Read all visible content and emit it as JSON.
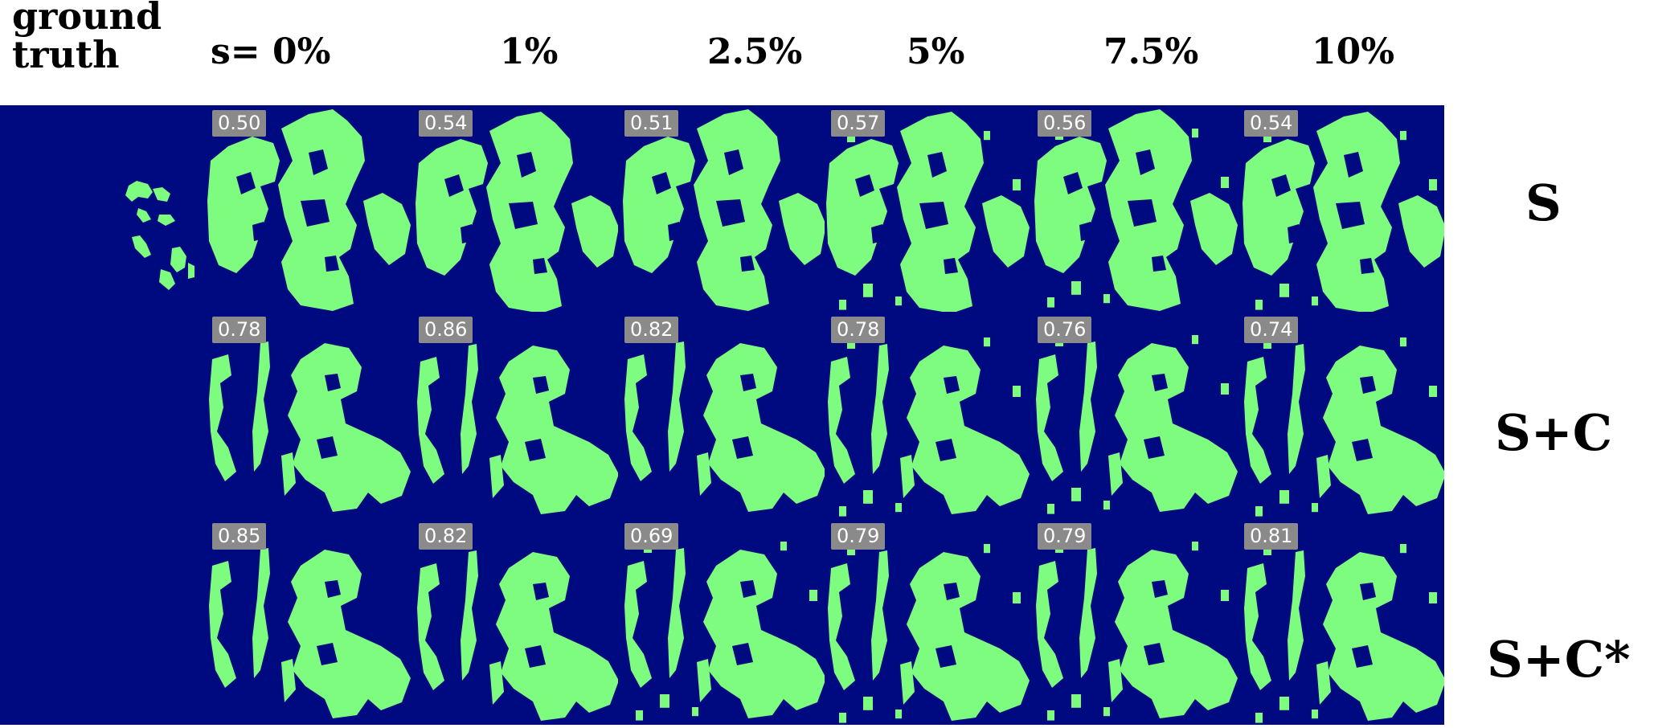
{
  "ground_truth_label": "ground\ntruth",
  "column_labels": [
    "s= 0%",
    "1%",
    "2.5%",
    "5%",
    "7.5%",
    "10%"
  ],
  "row_labels": [
    "S",
    "S+C",
    "S+C*"
  ],
  "scores": [
    [
      "0.50",
      "0.54",
      "0.51",
      "0.57",
      "0.56",
      "0.54"
    ],
    [
      "0.78",
      "0.86",
      "0.82",
      "0.78",
      "0.76",
      "0.74"
    ],
    [
      "0.85",
      "0.82",
      "0.69",
      "0.79",
      "0.79",
      "0.81"
    ]
  ],
  "colors": {
    "background": "#000a80",
    "foreground": "#7dfc7f",
    "badge": "#8a8a8a"
  }
}
